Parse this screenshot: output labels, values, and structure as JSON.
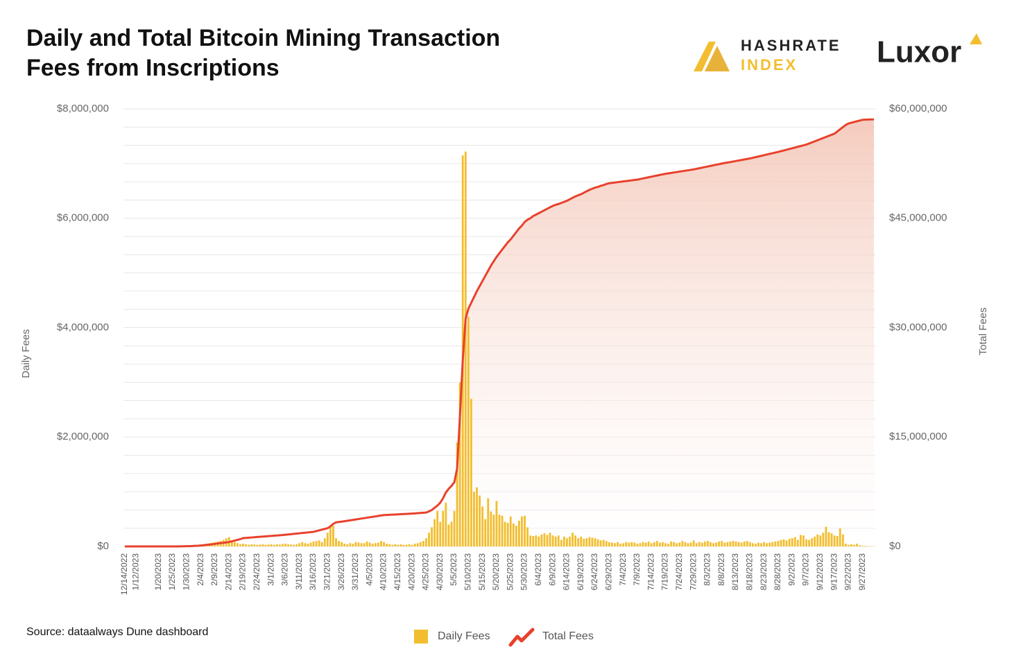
{
  "brand": {
    "hashrate": "HASHRATE",
    "index": "INDEX",
    "luxor": "Luxor"
  },
  "chart_data": {
    "type": "bar",
    "title_lines": [
      "Daily and Total Bitcoin Mining Transaction",
      "Fees from Inscriptions"
    ],
    "source": "Source: dataalways Dune dashboard",
    "y_label": "Daily Fees",
    "y2_label": "Total Fees",
    "ylim": [
      0,
      8000000
    ],
    "yticks": [
      {
        "value": 0,
        "label": "$0"
      },
      {
        "value": 2000000,
        "label": "$2,000,000"
      },
      {
        "value": 4000000,
        "label": "$4,000,000"
      },
      {
        "value": 6000000,
        "label": "$6,000,000"
      },
      {
        "value": 8000000,
        "label": "$8,000,000"
      }
    ],
    "y2lim": [
      0,
      60000000
    ],
    "y2ticks": [
      {
        "value": 0,
        "label": "$0"
      },
      {
        "value": 15000000,
        "label": "$15,000,000"
      },
      {
        "value": 30000000,
        "label": "$30,000,000"
      },
      {
        "value": 45000000,
        "label": "$45,000,000"
      },
      {
        "value": 60000000,
        "label": "$60,000,000"
      }
    ],
    "y2grid": [
      0,
      2500000,
      5000000,
      7500000,
      10000000,
      12500000,
      15000000,
      17500000,
      20000000,
      22500000,
      25000000,
      27500000,
      30000000,
      32500000,
      35000000,
      37500000,
      40000000,
      42500000,
      45000000,
      47500000,
      50000000,
      52500000,
      55000000,
      57500000,
      60000000
    ],
    "grid": true,
    "categories": [
      "12/14/2022",
      null,
      null,
      null,
      "1/12/2023",
      null,
      null,
      null,
      null,
      null,
      null,
      null,
      "1/20/2023",
      null,
      null,
      null,
      null,
      "1/25/2023",
      null,
      null,
      null,
      null,
      "1/30/2023",
      null,
      null,
      null,
      null,
      "2/4/2023",
      null,
      null,
      null,
      null,
      "2/9/2023",
      null,
      null,
      null,
      null,
      "2/14/2023",
      null,
      null,
      null,
      null,
      "2/19/2023",
      null,
      null,
      null,
      null,
      "2/24/2023",
      null,
      null,
      null,
      null,
      "3/1/2023",
      null,
      null,
      null,
      null,
      "3/6/2023",
      null,
      null,
      null,
      null,
      "3/11/2023",
      null,
      null,
      null,
      null,
      "3/16/2023",
      null,
      null,
      null,
      null,
      "3/21/2023",
      null,
      null,
      null,
      null,
      "3/26/2023",
      null,
      null,
      null,
      null,
      "3/31/2023",
      null,
      null,
      null,
      null,
      "4/5/2023",
      null,
      null,
      null,
      null,
      "4/10/2023",
      null,
      null,
      null,
      null,
      "4/15/2023",
      null,
      null,
      null,
      null,
      "4/20/2023",
      null,
      null,
      null,
      null,
      "4/25/2023",
      null,
      null,
      null,
      null,
      "4/30/2023",
      null,
      null,
      null,
      null,
      "5/5/2023",
      null,
      null,
      null,
      null,
      "5/10/2023",
      null,
      null,
      null,
      null,
      "5/15/2023",
      null,
      null,
      null,
      null,
      "5/20/2023",
      null,
      null,
      null,
      null,
      "5/25/2023",
      null,
      null,
      null,
      null,
      "5/30/2023",
      null,
      null,
      null,
      null,
      "6/4/2023",
      null,
      null,
      null,
      null,
      "6/9/2023",
      null,
      null,
      null,
      null,
      "6/14/2023",
      null,
      null,
      null,
      null,
      "6/19/2023",
      null,
      null,
      null,
      null,
      "6/24/2023",
      null,
      null,
      null,
      null,
      "6/29/2023",
      null,
      null,
      null,
      null,
      "7/4/2023",
      null,
      null,
      null,
      null,
      "7/9/2023",
      null,
      null,
      null,
      null,
      "7/14/2023",
      null,
      null,
      null,
      null,
      "7/19/2023",
      null,
      null,
      null,
      null,
      "7/24/2023",
      null,
      null,
      null,
      null,
      "7/29/2023",
      null,
      null,
      null,
      null,
      "8/3/2023",
      null,
      null,
      null,
      null,
      "8/8/2023",
      null,
      null,
      null,
      null,
      "8/13/2023",
      null,
      null,
      null,
      null,
      "8/18/2023",
      null,
      null,
      null,
      null,
      "8/23/2023",
      null,
      null,
      null,
      null,
      "8/28/2023",
      null,
      null,
      null,
      null,
      "9/2/2023",
      null,
      null,
      null,
      null,
      "9/7/2023",
      null,
      null,
      null,
      null,
      "9/12/2023",
      null,
      null,
      null,
      null,
      "9/17/2023",
      null,
      null,
      null,
      null,
      "9/22/2023",
      null,
      null,
      null,
      null,
      "9/27/2023",
      null,
      null,
      null,
      null
    ],
    "series": [
      {
        "name": "Daily Fees",
        "type": "bar",
        "color": "#f2be2f",
        "values": [
          2000,
          1000,
          1000,
          1000,
          3000,
          2000,
          2000,
          3000,
          2000,
          3000,
          4000,
          3000,
          3000,
          4000,
          5000,
          4000,
          5000,
          6000,
          5000,
          6000,
          8000,
          7000,
          9000,
          10000,
          12000,
          15000,
          20000,
          30000,
          40000,
          50000,
          60000,
          70000,
          80000,
          90000,
          100000,
          120000,
          150000,
          170000,
          110000,
          80000,
          60000,
          40000,
          50000,
          40000,
          30000,
          40000,
          35000,
          30000,
          35000,
          40000,
          30000,
          35000,
          40000,
          30000,
          40000,
          35000,
          45000,
          50000,
          40000,
          35000,
          30000,
          40000,
          60000,
          80000,
          60000,
          50000,
          70000,
          90000,
          100000,
          110000,
          80000,
          150000,
          250000,
          380000,
          380000,
          150000,
          100000,
          80000,
          50000,
          40000,
          60000,
          50000,
          80000,
          70000,
          60000,
          60000,
          90000,
          70000,
          50000,
          60000,
          70000,
          100000,
          80000,
          50000,
          40000,
          30000,
          40000,
          30000,
          40000,
          30000,
          30000,
          40000,
          30000,
          50000,
          60000,
          80000,
          100000,
          150000,
          250000,
          350000,
          500000,
          650000,
          450000,
          650000,
          800000,
          400000,
          450000,
          650000,
          1900000,
          3000000,
          7150000,
          7220000,
          4200000,
          2700000,
          1000000,
          1080000,
          930000,
          730000,
          500000,
          880000,
          640000,
          580000,
          830000,
          580000,
          560000,
          450000,
          430000,
          550000,
          420000,
          380000,
          470000,
          550000,
          560000,
          350000,
          200000,
          190000,
          200000,
          180000,
          220000,
          240000,
          210000,
          250000,
          200000,
          180000,
          200000,
          120000,
          180000,
          150000,
          180000,
          250000,
          200000,
          150000,
          180000,
          140000,
          150000,
          170000,
          160000,
          150000,
          130000,
          110000,
          120000,
          100000,
          80000,
          70000,
          60000,
          80000,
          50000,
          60000,
          80000,
          70000,
          80000,
          70000,
          50000,
          60000,
          80000,
          70000,
          90000,
          60000,
          80000,
          100000,
          70000,
          80000,
          60000,
          50000,
          90000,
          80000,
          60000,
          70000,
          100000,
          80000,
          60000,
          70000,
          110000,
          60000,
          80000,
          70000,
          90000,
          100000,
          80000,
          60000,
          70000,
          90000,
          100000,
          70000,
          80000,
          90000,
          100000,
          90000,
          80000,
          70000,
          90000,
          100000,
          80000,
          60000,
          50000,
          70000,
          60000,
          80000,
          60000,
          70000,
          80000,
          90000,
          100000,
          120000,
          130000,
          110000,
          140000,
          150000,
          170000,
          120000,
          210000,
          200000,
          130000,
          120000,
          150000,
          180000,
          220000,
          200000,
          250000,
          360000,
          260000,
          240000,
          200000,
          190000,
          330000,
          220000,
          50000,
          30000,
          40000,
          30000,
          50000,
          20000,
          10000,
          10000,
          5000,
          5000,
          3000
        ]
      },
      {
        "name": "Total Fees",
        "type": "line",
        "axis": "y2",
        "color": "#e8412c",
        "fill": "#f3c3b3",
        "values": [
          0,
          0,
          0,
          0,
          0,
          0,
          0,
          0,
          0,
          0,
          0,
          0,
          0,
          0,
          0,
          0,
          0,
          0,
          0,
          0,
          10000,
          20000,
          30000,
          40000,
          60000,
          80000,
          100000,
          130000,
          170000,
          210000,
          250000,
          300000,
          350000,
          400000,
          450000,
          500000,
          550000,
          600000,
          700000,
          800000,
          900000,
          1000000,
          1140000,
          1170000,
          1200000,
          1230000,
          1260000,
          1290000,
          1320000,
          1350000,
          1380000,
          1410000,
          1440000,
          1470000,
          1500000,
          1530000,
          1560000,
          1600000,
          1640000,
          1680000,
          1720000,
          1760000,
          1800000,
          1840000,
          1880000,
          1920000,
          1960000,
          2000000,
          2100000,
          2200000,
          2300000,
          2400000,
          2500000,
          2750000,
          3100000,
          3300000,
          3350000,
          3400000,
          3460000,
          3520000,
          3580000,
          3640000,
          3700000,
          3760000,
          3820000,
          3880000,
          3940000,
          4000000,
          4060000,
          4120000,
          4180000,
          4240000,
          4300000,
          4320000,
          4340000,
          4360000,
          4380000,
          4400000,
          4420000,
          4440000,
          4460000,
          4480000,
          4500000,
          4530000,
          4560000,
          4590000,
          4620000,
          4650000,
          4800000,
          5000000,
          5300000,
          5600000,
          6000000,
          6600000,
          7400000,
          7900000,
          8300000,
          8800000,
          10700000,
          17900000,
          25500000,
          31200000,
          32600000,
          33400000,
          34200000,
          35000000,
          35700000,
          36400000,
          37100000,
          37800000,
          38500000,
          39100000,
          39700000,
          40200000,
          40700000,
          41200000,
          41700000,
          42100000,
          42600000,
          43100000,
          43600000,
          44000000,
          44500000,
          44800000,
          45000000,
          45300000,
          45500000,
          45700000,
          45900000,
          46100000,
          46300000,
          46500000,
          46700000,
          46850000,
          46950000,
          47100000,
          47250000,
          47400000,
          47600000,
          47800000,
          48000000,
          48150000,
          48300000,
          48500000,
          48700000,
          48900000,
          49050000,
          49200000,
          49300000,
          49450000,
          49550000,
          49700000,
          49800000,
          49850000,
          49900000,
          49950000,
          50000000,
          50050000,
          50100000,
          50150000,
          50200000,
          50250000,
          50300000,
          50380000,
          50460000,
          50540000,
          50620000,
          50700000,
          50780000,
          50860000,
          50940000,
          51020000,
          51100000,
          51160000,
          51220000,
          51280000,
          51340000,
          51400000,
          51460000,
          51520000,
          51580000,
          51640000,
          51700000,
          51780000,
          51860000,
          51940000,
          52020000,
          52100000,
          52180000,
          52260000,
          52340000,
          52420000,
          52500000,
          52570000,
          52640000,
          52710000,
          52780000,
          52850000,
          52920000,
          52990000,
          53060000,
          53130000,
          53200000,
          53290000,
          53380000,
          53470000,
          53560000,
          53650000,
          53740000,
          53830000,
          53920000,
          54010000,
          54100000,
          54200000,
          54300000,
          54400000,
          54500000,
          54600000,
          54700000,
          54800000,
          54900000,
          55000000,
          55100000,
          55250000,
          55400000,
          55550000,
          55700000,
          55850000,
          56000000,
          56150000,
          56300000,
          56450000,
          56600000,
          56900000,
          57200000,
          57500000,
          57800000,
          58000000,
          58100000,
          58200000,
          58300000,
          58400000,
          58500000,
          58520000,
          58540000,
          58550000,
          58560000
        ]
      }
    ]
  }
}
